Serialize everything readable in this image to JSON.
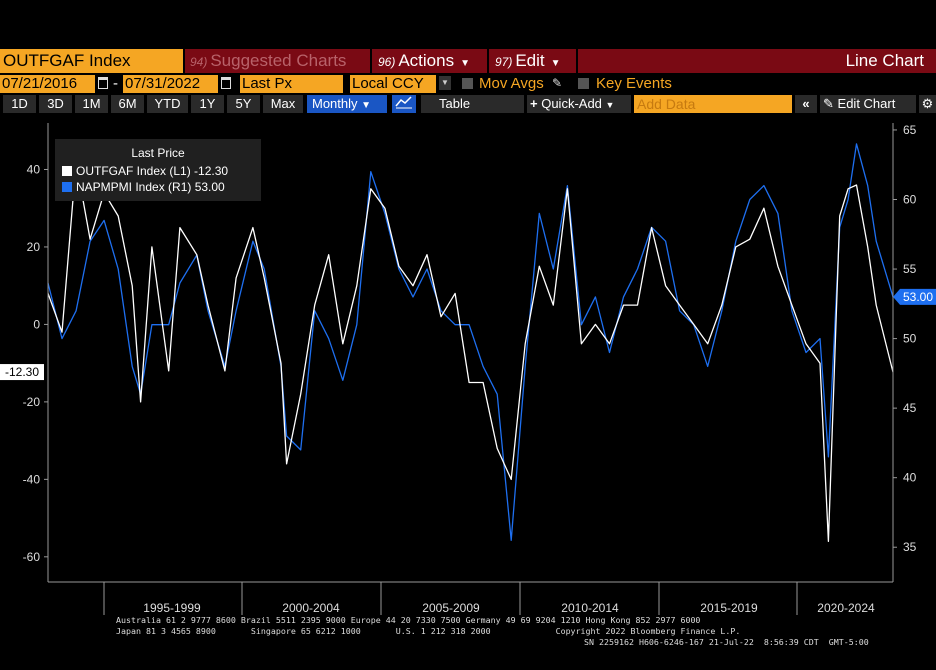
{
  "toolbar_top": {
    "ticker": "OUTFGAF Index",
    "suggested": {
      "num": "94)",
      "label": "Suggested Charts"
    },
    "actions": {
      "num": "96)",
      "label": "Actions"
    },
    "edit": {
      "num": "97)",
      "label": "Edit"
    },
    "chart_type": "Line Chart"
  },
  "params": {
    "start_date": "07/21/2016",
    "end_date": "07/31/2022",
    "separator": "-",
    "field": "Last Px",
    "currency": "Local CCY",
    "mov_avgs": "Mov Avgs",
    "key_events": "Key Events"
  },
  "range_buttons": [
    "1D",
    "3D",
    "1M",
    "6M",
    "YTD",
    "1Y",
    "5Y",
    "Max"
  ],
  "frequency": "Monthly",
  "table_label": "Table",
  "quick_add": "Quick-Add",
  "add_data_placeholder": "Add Data",
  "edit_chart": "Edit Chart",
  "legend": {
    "title": "Last Price",
    "rows": [
      {
        "text": "OUTFGAF Index  (L1)  -12.30",
        "color": "#ffffff"
      },
      {
        "text": "NAPMPMI Index  (R1)  53.00",
        "color": "#1e6ff0"
      }
    ]
  },
  "badges": {
    "left": "-12.30",
    "right": "53.00"
  },
  "colors": {
    "accent_orange": "#f5a623",
    "title_red": "#7a0a14",
    "series1": "#ffffff",
    "series2": "#1e6ff0"
  },
  "chart_data": {
    "type": "line",
    "x_labels": [
      "1995-1999",
      "2000-2004",
      "2005-2009",
      "2010-2014",
      "2015-2019",
      "2020-2024"
    ],
    "x_range": [
      1992.5,
      2022.6
    ],
    "left_axis": {
      "ticks": [
        40,
        20,
        0,
        -20,
        -40,
        -60
      ],
      "range": [
        -66.5,
        52
      ]
    },
    "right_axis": {
      "ticks": [
        65,
        60,
        55,
        50,
        45,
        40,
        35
      ],
      "range": [
        32.5,
        65.5
      ]
    },
    "series": [
      {
        "name": "OUTFGAF Index",
        "axis": "left",
        "points": [
          [
            1992.5,
            8
          ],
          [
            1993.0,
            -2
          ],
          [
            1993.5,
            42
          ],
          [
            1994.0,
            22
          ],
          [
            1994.5,
            34
          ],
          [
            1995.0,
            28
          ],
          [
            1995.5,
            10
          ],
          [
            1995.8,
            -20
          ],
          [
            1996.2,
            20
          ],
          [
            1996.8,
            -12
          ],
          [
            1997.2,
            25
          ],
          [
            1997.8,
            18
          ],
          [
            1998.2,
            5
          ],
          [
            1998.8,
            -12
          ],
          [
            1999.2,
            12
          ],
          [
            1999.8,
            25
          ],
          [
            2000.2,
            12
          ],
          [
            2000.8,
            -10
          ],
          [
            2001.0,
            -36
          ],
          [
            2001.5,
            -18
          ],
          [
            2002.0,
            5
          ],
          [
            2002.5,
            18
          ],
          [
            2003.0,
            -5
          ],
          [
            2003.5,
            10
          ],
          [
            2004.0,
            35
          ],
          [
            2004.5,
            30
          ],
          [
            2005.0,
            15
          ],
          [
            2005.5,
            10
          ],
          [
            2006.0,
            18
          ],
          [
            2006.5,
            2
          ],
          [
            2007.0,
            8
          ],
          [
            2007.5,
            -15
          ],
          [
            2008.0,
            -15
          ],
          [
            2008.5,
            -32
          ],
          [
            2009.0,
            -40
          ],
          [
            2009.5,
            -5
          ],
          [
            2010.0,
            15
          ],
          [
            2010.5,
            5
          ],
          [
            2011.0,
            35
          ],
          [
            2011.5,
            -5
          ],
          [
            2012.0,
            0
          ],
          [
            2012.5,
            -5
          ],
          [
            2013.0,
            5
          ],
          [
            2013.5,
            5
          ],
          [
            2014.0,
            25
          ],
          [
            2014.5,
            10
          ],
          [
            2015.0,
            5
          ],
          [
            2015.5,
            0
          ],
          [
            2016.0,
            -5
          ],
          [
            2016.5,
            5
          ],
          [
            2017.0,
            20
          ],
          [
            2017.5,
            22
          ],
          [
            2018.0,
            30
          ],
          [
            2018.5,
            15
          ],
          [
            2019.0,
            5
          ],
          [
            2019.5,
            -5
          ],
          [
            2020.0,
            -10
          ],
          [
            2020.3,
            -56
          ],
          [
            2020.7,
            28
          ],
          [
            2021.0,
            35
          ],
          [
            2021.3,
            36
          ],
          [
            2021.7,
            20
          ],
          [
            2022.0,
            5
          ],
          [
            2022.6,
            -12.3
          ]
        ]
      },
      {
        "name": "NAPMPMI Index",
        "axis": "right",
        "points": [
          [
            1992.5,
            54
          ],
          [
            1993.0,
            50
          ],
          [
            1993.5,
            52
          ],
          [
            1994.0,
            57
          ],
          [
            1994.5,
            58.5
          ],
          [
            1995.0,
            55
          ],
          [
            1995.5,
            48
          ],
          [
            1995.8,
            46
          ],
          [
            1996.2,
            51
          ],
          [
            1996.8,
            51
          ],
          [
            1997.2,
            54
          ],
          [
            1997.8,
            56
          ],
          [
            1998.2,
            52
          ],
          [
            1998.8,
            48
          ],
          [
            1999.2,
            52
          ],
          [
            1999.8,
            57
          ],
          [
            2000.2,
            55
          ],
          [
            2000.8,
            48
          ],
          [
            2001.0,
            43
          ],
          [
            2001.5,
            42
          ],
          [
            2002.0,
            52
          ],
          [
            2002.5,
            50
          ],
          [
            2003.0,
            47
          ],
          [
            2003.5,
            51
          ],
          [
            2004.0,
            62
          ],
          [
            2004.5,
            59
          ],
          [
            2005.0,
            55
          ],
          [
            2005.5,
            53
          ],
          [
            2006.0,
            55
          ],
          [
            2006.5,
            52
          ],
          [
            2007.0,
            51
          ],
          [
            2007.5,
            51
          ],
          [
            2008.0,
            48
          ],
          [
            2008.5,
            46
          ],
          [
            2009.0,
            35.5
          ],
          [
            2009.5,
            48
          ],
          [
            2010.0,
            59
          ],
          [
            2010.5,
            55
          ],
          [
            2011.0,
            61
          ],
          [
            2011.5,
            51
          ],
          [
            2012.0,
            53
          ],
          [
            2012.5,
            49
          ],
          [
            2013.0,
            53
          ],
          [
            2013.5,
            55
          ],
          [
            2014.0,
            58
          ],
          [
            2014.5,
            57
          ],
          [
            2015.0,
            52
          ],
          [
            2015.5,
            51
          ],
          [
            2016.0,
            48
          ],
          [
            2016.5,
            52
          ],
          [
            2017.0,
            57
          ],
          [
            2017.5,
            60
          ],
          [
            2018.0,
            61
          ],
          [
            2018.5,
            59
          ],
          [
            2019.0,
            52
          ],
          [
            2019.5,
            49
          ],
          [
            2020.0,
            50
          ],
          [
            2020.3,
            41.5
          ],
          [
            2020.7,
            58
          ],
          [
            2021.0,
            60
          ],
          [
            2021.3,
            64
          ],
          [
            2021.7,
            61
          ],
          [
            2022.0,
            57
          ],
          [
            2022.6,
            53
          ]
        ]
      }
    ]
  },
  "footer": {
    "line1": "Australia 61 2 9777 8600 Brazil 5511 2395 9000 Europe 44 20 7330 7500 Germany 49 69 9204 1210 Hong Kong 852 2977 6000",
    "line2": "Japan 81 3 4565 8900       Singapore 65 6212 1000       U.S. 1 212 318 2000             Copyright 2022 Bloomberg Finance L.P.",
    "line3": "SN 2259162 H606-6246-167 21-Jul-22  8:56:39 CDT  GMT-5:00"
  }
}
